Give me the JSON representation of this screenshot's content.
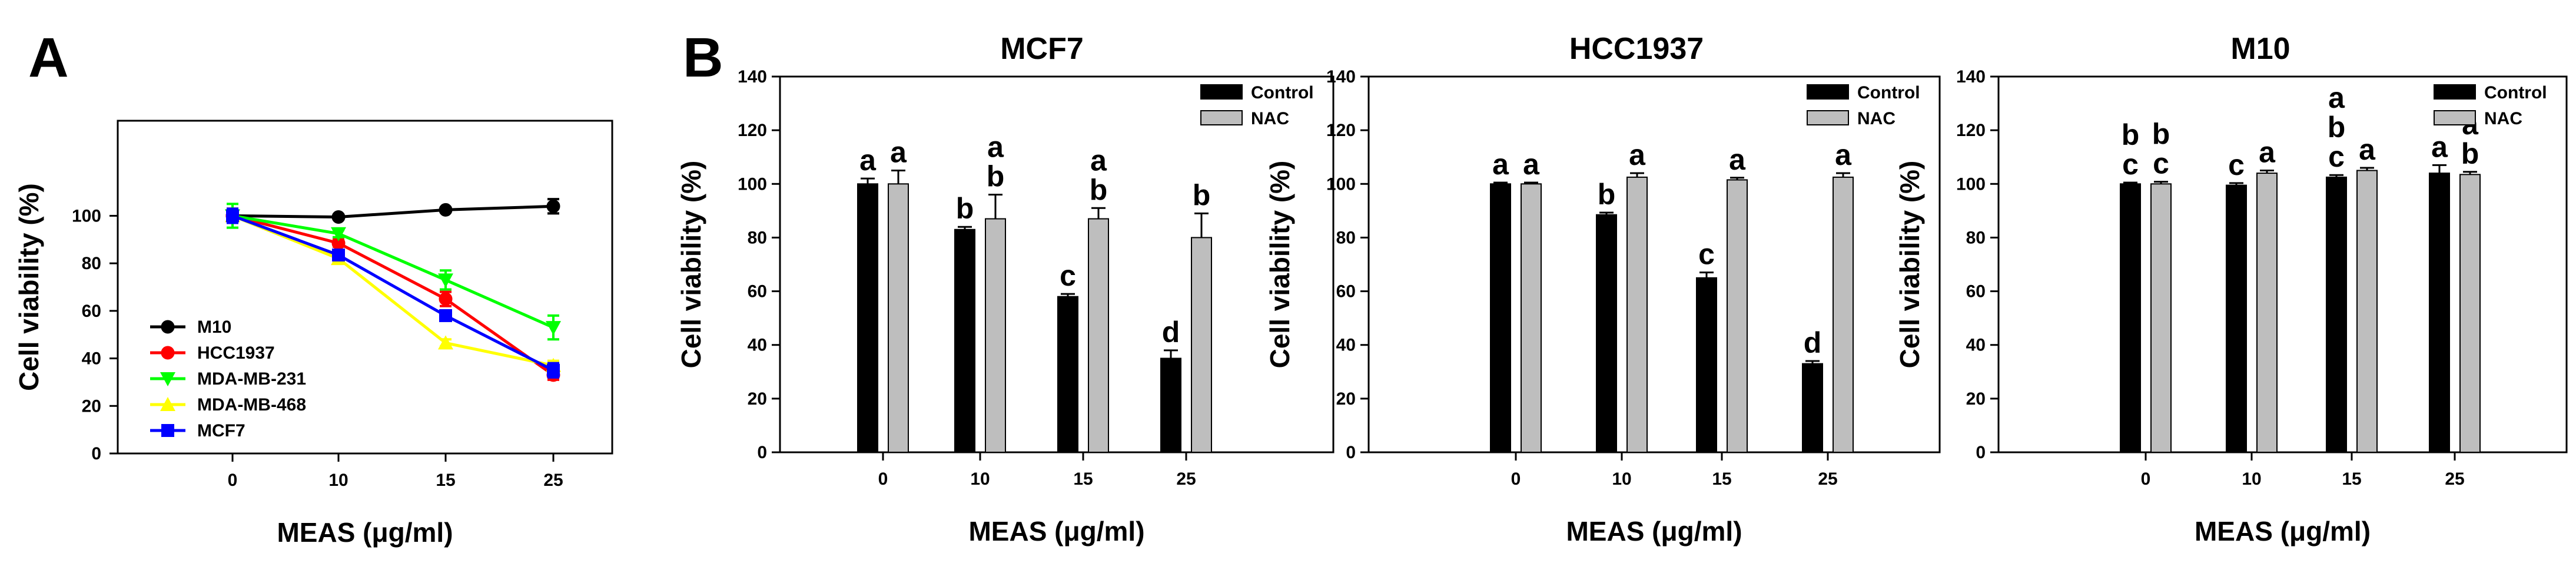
{
  "panel_labels": [
    "A",
    "B"
  ],
  "chart_data": [
    {
      "type": "line",
      "panel": "A",
      "title": "",
      "xlabel": "MEAS (μg/ml)",
      "ylabel": "Cell viability (%)",
      "categories": [
        "0",
        "10",
        "15",
        "25"
      ],
      "ylim": [
        0,
        140
      ],
      "yticks": [
        "0",
        "20",
        "40",
        "60",
        "80",
        "100"
      ],
      "legend_position": "bottom-left",
      "series": [
        {
          "name": "M10",
          "color": "#000000",
          "marker": "circle",
          "values": [
            100,
            99.5,
            102.5,
            104
          ],
          "errors": [
            3,
            1,
            1,
            3
          ]
        },
        {
          "name": "HCC1937",
          "color": "#ff0000",
          "marker": "circle",
          "values": [
            100,
            88.5,
            65,
            33
          ],
          "errors": [
            3,
            1.5,
            3,
            2
          ]
        },
        {
          "name": "MDA-MB-231",
          "color": "#00ff00",
          "marker": "triangle-down",
          "values": [
            100,
            92.5,
            73,
            53
          ],
          "errors": [
            5,
            1.5,
            4,
            5
          ]
        },
        {
          "name": "MDA-MB-468",
          "color": "#ffff00",
          "marker": "triangle-up",
          "values": [
            100,
            82,
            46.5,
            37
          ],
          "errors": [
            3,
            1.5,
            1.5,
            2
          ]
        },
        {
          "name": "MCF7",
          "color": "#0000ff",
          "marker": "square",
          "values": [
            100,
            83.5,
            58,
            35
          ],
          "errors": [
            3,
            1,
            2,
            3
          ]
        }
      ]
    },
    {
      "type": "bar",
      "panel": "B",
      "title": "MCF7",
      "xlabel": "MEAS (μg/ml)",
      "ylabel": "Cell viability (%)",
      "categories": [
        "0",
        "10",
        "15",
        "25"
      ],
      "ylim": [
        0,
        140
      ],
      "yticks": [
        "0",
        "20",
        "40",
        "60",
        "80",
        "100",
        "120",
        "140"
      ],
      "legend_position": "top-right",
      "series": [
        {
          "name": "Control",
          "color": "#000000",
          "values": [
            100,
            83,
            58,
            35
          ],
          "errors": [
            2,
            1,
            1,
            3
          ],
          "labels": [
            [
              "a"
            ],
            [
              "b"
            ],
            [
              "c"
            ],
            [
              "d"
            ]
          ]
        },
        {
          "name": "NAC",
          "color": "#bebebe",
          "values": [
            100,
            87,
            87,
            80
          ],
          "errors": [
            5,
            9,
            4,
            9
          ],
          "labels": [
            [
              "a"
            ],
            [
              "a",
              "b"
            ],
            [
              "a",
              "b"
            ],
            [
              "b"
            ]
          ]
        }
      ]
    },
    {
      "type": "bar",
      "panel": "B",
      "title": "HCC1937",
      "xlabel": "MEAS (μg/ml)",
      "ylabel": "Cell viability (%)",
      "categories": [
        "0",
        "10",
        "15",
        "25"
      ],
      "ylim": [
        0,
        140
      ],
      "yticks": [
        "0",
        "20",
        "40",
        "60",
        "80",
        "100",
        "120",
        "140"
      ],
      "legend_position": "top-right",
      "series": [
        {
          "name": "Control",
          "color": "#000000",
          "values": [
            100,
            88.5,
            65,
            33
          ],
          "errors": [
            0.5,
            0.8,
            2,
            1
          ],
          "labels": [
            [
              "a"
            ],
            [
              "b"
            ],
            [
              "c"
            ],
            [
              "d"
            ]
          ]
        },
        {
          "name": "NAC",
          "color": "#bebebe",
          "values": [
            100,
            102.5,
            101.5,
            102.5
          ],
          "errors": [
            0.5,
            1.5,
            0.8,
            1.5
          ],
          "labels": [
            [
              "a"
            ],
            [
              "a"
            ],
            [
              "a"
            ],
            [
              "a"
            ]
          ]
        }
      ]
    },
    {
      "type": "bar",
      "panel": "B",
      "title": "M10",
      "xlabel": "MEAS (μg/ml)",
      "ylabel": "Cell viability (%)",
      "categories": [
        "0",
        "10",
        "15",
        "25"
      ],
      "ylim": [
        0,
        140
      ],
      "yticks": [
        "0",
        "20",
        "40",
        "60",
        "80",
        "100",
        "120",
        "140"
      ],
      "legend_position": "top-right",
      "series": [
        {
          "name": "Control",
          "color": "#000000",
          "values": [
            100,
            99.5,
            102.5,
            104
          ],
          "errors": [
            0.5,
            0.8,
            0.8,
            3
          ],
          "labels": [
            [
              "b",
              "c"
            ],
            [
              "c"
            ],
            [
              "a",
              "b",
              "c"
            ],
            [
              "a"
            ]
          ]
        },
        {
          "name": "NAC",
          "color": "#bebebe",
          "values": [
            100,
            104,
            105,
            103.5
          ],
          "errors": [
            0.8,
            1,
            1,
            1
          ],
          "labels": [
            [
              "b",
              "c"
            ],
            [
              "a"
            ],
            [
              "a"
            ],
            [
              "a",
              "b"
            ]
          ]
        }
      ]
    }
  ]
}
